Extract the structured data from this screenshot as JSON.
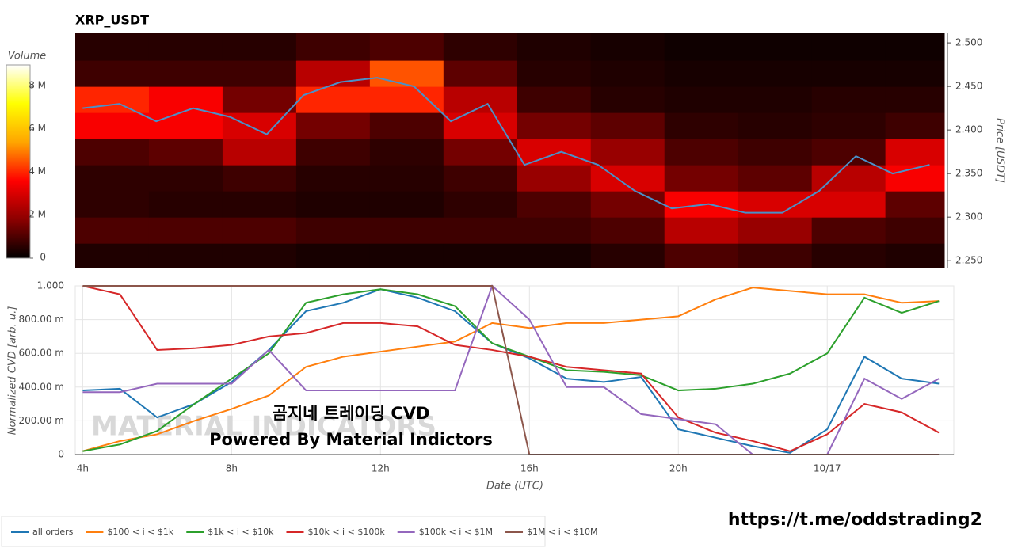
{
  "chart_data": [
    {
      "type": "heatmap",
      "title": "XRP_USDT",
      "y2label": "Price [USDT]",
      "xlim": [
        3.8,
        27.4
      ],
      "y2lim": [
        2.242,
        2.511
      ],
      "y2ticks": [
        {
          "value": 2.25,
          "label": "2.250"
        },
        {
          "value": 2.3,
          "label": "2.300"
        },
        {
          "value": 2.35,
          "label": "2.350"
        },
        {
          "value": 2.4,
          "label": "2.400"
        },
        {
          "value": 2.45,
          "label": "2.450"
        },
        {
          "value": 2.5,
          "label": "2.500"
        }
      ],
      "x_edges": [
        3.8,
        5.8,
        7.8,
        9.8,
        11.8,
        13.8,
        15.8,
        17.8,
        19.8,
        21.8,
        23.8,
        25.8,
        27.4
      ],
      "y_edges": [
        2.242,
        2.27,
        2.3,
        2.33,
        2.36,
        2.39,
        2.42,
        2.45,
        2.48,
        2.511
      ],
      "z": [
        [
          400000,
          400000,
          400000,
          300000,
          300000,
          300000,
          300000,
          500000,
          1000000,
          800000,
          500000,
          400000
        ],
        [
          1000000,
          1000000,
          1000000,
          800000,
          800000,
          800000,
          800000,
          1000000,
          2500000,
          2000000,
          1000000,
          800000
        ],
        [
          600000,
          500000,
          500000,
          400000,
          400000,
          600000,
          1000000,
          1500000,
          3500000,
          3000000,
          3000000,
          1200000
        ],
        [
          600000,
          600000,
          800000,
          500000,
          500000,
          800000,
          2000000,
          3000000,
          1500000,
          1200000,
          2500000,
          3500000
        ],
        [
          1000000,
          1200000,
          2500000,
          800000,
          600000,
          1500000,
          3000000,
          2000000,
          1000000,
          800000,
          1000000,
          3000000
        ],
        [
          3500000,
          3500000,
          3000000,
          1500000,
          1000000,
          3000000,
          1500000,
          1200000,
          600000,
          500000,
          600000,
          800000
        ],
        [
          4000000,
          3500000,
          1500000,
          4000000,
          4000000,
          2500000,
          800000,
          500000,
          400000,
          400000,
          500000,
          500000
        ],
        [
          800000,
          800000,
          800000,
          2500000,
          4500000,
          1200000,
          500000,
          400000,
          300000,
          300000,
          300000,
          300000
        ],
        [
          500000,
          500000,
          500000,
          800000,
          1000000,
          600000,
          400000,
          300000,
          200000,
          200000,
          200000,
          200000
        ]
      ],
      "colorscale": [
        "#000000",
        "#8b0000",
        "#ff0000",
        "#ffa500",
        "#ffff00",
        "#ffffff"
      ],
      "colorbar": {
        "title": "Volume",
        "lim": [
          0,
          9000000
        ],
        "ticks": [
          0,
          {
            "value": 2000000,
            "label": "2 M"
          },
          {
            "value": 4000000,
            "label": "4 M"
          },
          {
            "value": 6000000,
            "label": "6 M"
          },
          {
            "value": 8000000,
            "label": "8 M"
          }
        ]
      },
      "x": [
        4,
        5,
        6,
        7,
        8,
        9,
        10,
        11,
        12,
        13,
        14,
        15,
        16,
        17,
        18,
        19,
        20,
        21,
        22,
        23,
        24,
        25,
        26,
        27
      ],
      "price": {
        "color": "#4a90c8",
        "axis": "y2",
        "values": [
          2.425,
          2.43,
          2.41,
          2.425,
          2.415,
          2.395,
          2.44,
          2.455,
          2.46,
          2.45,
          2.41,
          2.43,
          2.36,
          2.375,
          2.36,
          2.33,
          2.31,
          2.315,
          2.305,
          2.305,
          2.33,
          2.37,
          2.35,
          2.36
        ]
      }
    },
    {
      "type": "line",
      "xlabel": "Date (UTC)",
      "ylabel": "Normalized CVD [arb. u.]",
      "xlim": [
        3.8,
        27.4
      ],
      "ylim": [
        0,
        1
      ],
      "xticks": [
        {
          "value": 4,
          "label": "4h"
        },
        {
          "value": 8,
          "label": "8h"
        },
        {
          "value": 12,
          "label": "12h"
        },
        {
          "value": 16,
          "label": "16h"
        },
        {
          "value": 20,
          "label": "20h"
        },
        {
          "value": 24,
          "label": "10/17"
        }
      ],
      "yticks": [
        0,
        {
          "value": 0.2,
          "label": "200.00 m"
        },
        {
          "value": 0.4,
          "label": "400.00 m"
        },
        {
          "value": 0.6,
          "label": "600.00 m"
        },
        {
          "value": 0.8,
          "label": "800.00 m"
        },
        {
          "value": 1,
          "label": "1.000"
        }
      ],
      "grid": true,
      "x": [
        4,
        5,
        6,
        7,
        8,
        9,
        10,
        11,
        12,
        13,
        14,
        15,
        16,
        17,
        18,
        19,
        20,
        21,
        22,
        23,
        24,
        25,
        26,
        27
      ],
      "series": [
        {
          "name": "all orders",
          "color": "#1f77b4",
          "values": [
            0.38,
            0.39,
            0.22,
            0.3,
            0.43,
            0.62,
            0.85,
            0.9,
            0.98,
            0.93,
            0.85,
            0.66,
            0.57,
            0.45,
            0.43,
            0.46,
            0.15,
            0.1,
            0.05,
            0.01,
            0.15,
            0.58,
            0.45,
            0.42
          ]
        },
        {
          "name": "$100 < i < $1k",
          "color": "#ff7f0e",
          "values": [
            0.02,
            0.08,
            0.12,
            0.2,
            0.27,
            0.35,
            0.52,
            0.58,
            0.61,
            0.64,
            0.67,
            0.78,
            0.75,
            0.78,
            0.78,
            0.8,
            0.82,
            0.92,
            0.99,
            0.97,
            0.95,
            0.95,
            0.9,
            0.91
          ]
        },
        {
          "name": "$1k < i < $10k",
          "color": "#2ca02c",
          "values": [
            0.02,
            0.06,
            0.14,
            0.3,
            0.45,
            0.6,
            0.9,
            0.95,
            0.98,
            0.95,
            0.88,
            0.66,
            0.58,
            0.5,
            0.49,
            0.47,
            0.38,
            0.39,
            0.42,
            0.48,
            0.6,
            0.93,
            0.84,
            0.91
          ]
        },
        {
          "name": "$10k < i < $100k",
          "color": "#d62728",
          "values": [
            1,
            0.95,
            0.62,
            0.63,
            0.65,
            0.7,
            0.72,
            0.78,
            0.78,
            0.76,
            0.65,
            0.62,
            0.58,
            0.52,
            0.5,
            0.48,
            0.22,
            0.13,
            0.08,
            0.02,
            0.12,
            0.3,
            0.25,
            0.13
          ]
        },
        {
          "name": "$100k < i < $1M",
          "color": "#9467bd",
          "values": [
            0.37,
            0.37,
            0.42,
            0.42,
            0.42,
            0.62,
            0.38,
            0.38,
            0.38,
            0.38,
            0.38,
            1,
            0.8,
            0.4,
            0.4,
            0.24,
            0.21,
            0.18,
            0,
            0,
            0,
            0.45,
            0.33,
            0.45
          ]
        },
        {
          "name": "$1M < i < $10M",
          "color": "#8c564b",
          "values": [
            1,
            1,
            1,
            1,
            1,
            1,
            1,
            1,
            1,
            1,
            1,
            1,
            0,
            0,
            0,
            0,
            0,
            0,
            0,
            0,
            0,
            0,
            0,
            0
          ]
        }
      ],
      "watermark": "MATERIAL INDICATORS",
      "annotations": [
        "곰지네 트레이딩 CVD",
        "Powered By Material Indictors"
      ]
    }
  ],
  "footer": {
    "link": "https://t.me/oddstrading2"
  }
}
